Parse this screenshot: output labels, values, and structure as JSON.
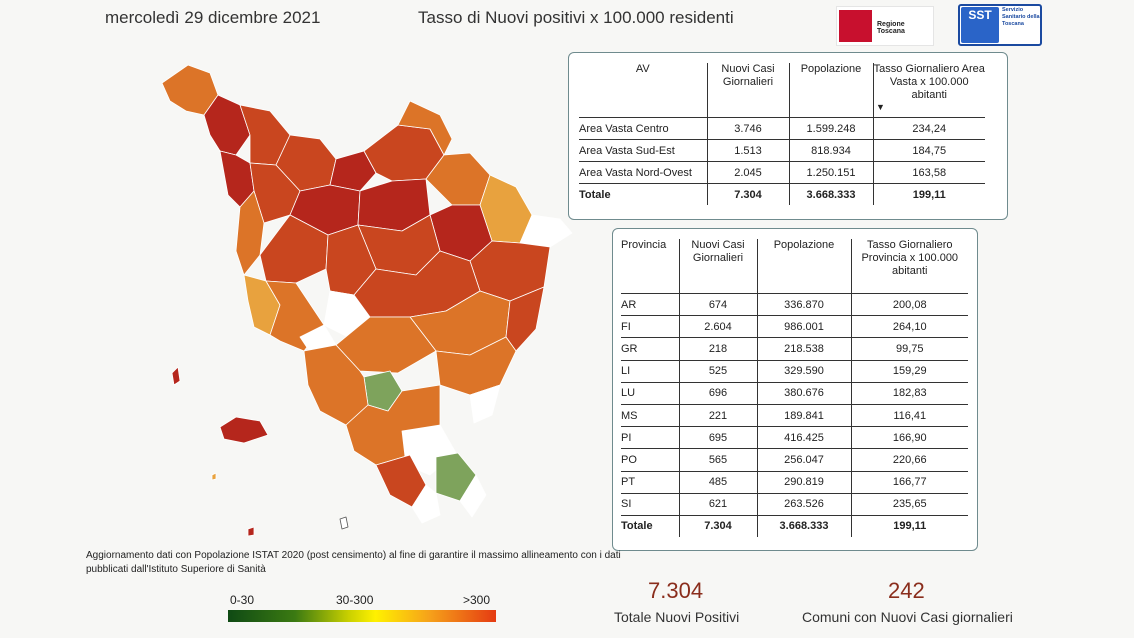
{
  "header": {
    "date": "mercoledì 29 dicembre 2021",
    "title": "Tasso di Nuovi positivi x 100.000 residenti"
  },
  "logos": {
    "regione": "Regione Toscana",
    "sst_mark": "SST",
    "sst_sub": "Servizio Sanitario della Toscana"
  },
  "av_table": {
    "headers": [
      "AV",
      "Nuovi Casi Giornalieri",
      "Popolazione",
      "Tasso Giornaliero Area Vasta x 100.000 abitanti"
    ],
    "rows": [
      [
        "Area Vasta Centro",
        "3.746",
        "1.599.248",
        "234,24"
      ],
      [
        "Area Vasta Sud-Est",
        "1.513",
        "818.934",
        "184,75"
      ],
      [
        "Area Vasta Nord-Ovest",
        "2.045",
        "1.250.151",
        "163,58"
      ]
    ],
    "total": [
      "Totale",
      "7.304",
      "3.668.333",
      "199,11"
    ]
  },
  "prov_table": {
    "headers": [
      "Provincia",
      "Nuovi Casi Giornalieri",
      "Popolazione",
      "Tasso Giornaliero Provincia x 100.000 abitanti"
    ],
    "rows": [
      [
        "AR",
        "674",
        "336.870",
        "200,08"
      ],
      [
        "FI",
        "2.604",
        "986.001",
        "264,10"
      ],
      [
        "GR",
        "218",
        "218.538",
        "99,75"
      ],
      [
        "LI",
        "525",
        "329.590",
        "159,29"
      ],
      [
        "LU",
        "696",
        "380.676",
        "182,83"
      ],
      [
        "MS",
        "221",
        "189.841",
        "116,41"
      ],
      [
        "PI",
        "695",
        "416.425",
        "166,90"
      ],
      [
        "PO",
        "565",
        "256.047",
        "220,66"
      ],
      [
        "PT",
        "485",
        "290.819",
        "166,77"
      ],
      [
        "SI",
        "621",
        "263.526",
        "235,65"
      ]
    ],
    "total": [
      "Totale",
      "7.304",
      "3.668.333",
      "199,11"
    ]
  },
  "note": "Aggiornamento dati con Popolazione ISTAT 2020 (post censimento) al fine di garantire il massimo allineamento con i dati pubblicati dall'Istituto Superiore di Sanità",
  "legend": {
    "low": "0-30",
    "mid": "30-300",
    "high": ">300",
    "colors": [
      "#0f4a14",
      "#fff100",
      "#e53b12"
    ]
  },
  "kpis": {
    "total_value": "7.304",
    "total_label": "Totale Nuovi Positivi",
    "comuni_value": "242",
    "comuni_label": "Comuni con Nuovi Casi giornalieri"
  },
  "map_colors": {
    "dark_red": "#b5261c",
    "red_orange": "#c9461f",
    "orange": "#dc7428",
    "light_orange": "#e8a23e",
    "green": "#7ea35c",
    "white": "#ffffff"
  }
}
